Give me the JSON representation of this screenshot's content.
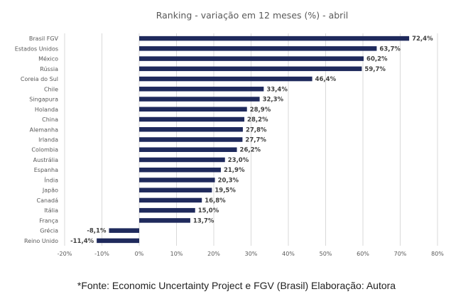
{
  "chart_data": {
    "type": "bar",
    "orientation": "horizontal",
    "title": "Ranking - variação em 12 meses (%) - abril",
    "categories": [
      "Brasil FGV",
      "Estados Unidos",
      "México",
      "Rússia",
      "Coreia do Sul",
      "Chile",
      "Singapura",
      "Holanda",
      "China",
      "Alemanha",
      "Irlanda",
      "Colombia",
      "Austrália",
      "Espanha",
      "Índia",
      "Japão",
      "Canadá",
      "Itália",
      "França",
      "Grécia",
      "Reino Unido"
    ],
    "values": [
      72.4,
      63.7,
      60.2,
      59.7,
      46.4,
      33.4,
      32.3,
      28.9,
      28.2,
      27.8,
      27.7,
      26.2,
      23.0,
      21.9,
      20.3,
      19.5,
      16.8,
      15.0,
      13.7,
      -8.1,
      -11.4
    ],
    "data_labels": [
      "72,4%",
      "63,7%",
      "60,2%",
      "59,7%",
      "46,4%",
      "33,4%",
      "32,3%",
      "28,9%",
      "28,2%",
      "27,8%",
      "27,7%",
      "26,2%",
      "23,0%",
      "21,9%",
      "20,3%",
      "19,5%",
      "16,8%",
      "15,0%",
      "13,7%",
      "-8,1%",
      "-11,4%"
    ],
    "xlim": [
      -20,
      80
    ],
    "xticks": [
      -20,
      -10,
      0,
      10,
      20,
      30,
      40,
      50,
      60,
      70,
      80
    ],
    "xtick_labels": [
      "-20%",
      "-10%",
      "0%",
      "10%",
      "20%",
      "30%",
      "40%",
      "50%",
      "60%",
      "70%",
      "80%"
    ],
    "xlabel": "",
    "ylabel": "",
    "grid": "vertical",
    "bar_color": "#1f2a5c"
  },
  "source": "*Fonte: Economic Uncertainty Project e FGV (Brasil) Elaboração: Autora"
}
